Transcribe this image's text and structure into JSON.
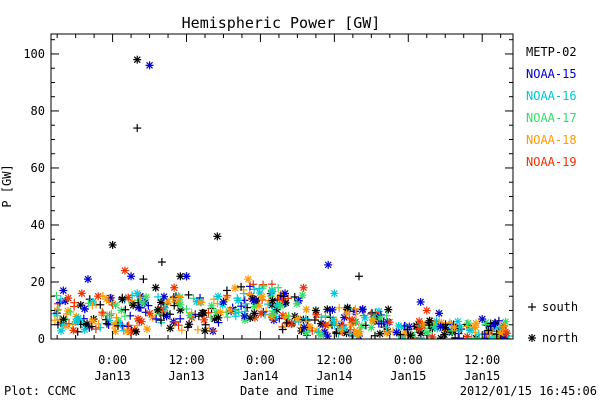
{
  "chart_data": {
    "type": "scatter",
    "title": "Hemispheric Power [GW]",
    "ylabel": "P [GW]",
    "xlabel": "Date and Time",
    "ylim": [
      0,
      107
    ],
    "yticks": [
      0,
      20,
      40,
      60,
      80,
      100
    ],
    "xlim": [
      "2012-01-12T14:00",
      "2012-01-15T17:00"
    ],
    "xticks": [
      {
        "time": "2012-01-13T00:00",
        "label1": "0:00",
        "label2": "Jan13"
      },
      {
        "time": "2012-01-13T12:00",
        "label1": "12:00",
        "label2": "Jan13"
      },
      {
        "time": "2012-01-14T00:00",
        "label1": "0:00",
        "label2": "Jan14"
      },
      {
        "time": "2012-01-14T12:00",
        "label1": "12:00",
        "label2": "Jan14"
      },
      {
        "time": "2012-01-15T00:00",
        "label1": "0:00",
        "label2": "Jan15"
      },
      {
        "time": "2012-01-15T12:00",
        "label1": "12:00",
        "label2": "Jan15"
      }
    ],
    "grid": false,
    "legend_position": "right",
    "marker_legend": [
      {
        "symbol": "+",
        "label": "south"
      },
      {
        "symbol": "*",
        "label": "north"
      }
    ],
    "series": [
      {
        "name": "METP-02",
        "color": "#000000",
        "points": [
          {
            "t": "2012-01-13T04:00",
            "v": 98,
            "h": "north"
          },
          {
            "t": "2012-01-13T04:00",
            "v": 74,
            "h": "south"
          },
          {
            "t": "2012-01-13T00:00",
            "v": 33,
            "h": "north"
          },
          {
            "t": "2012-01-13T17:00",
            "v": 36,
            "h": "north"
          },
          {
            "t": "2012-01-13T07:00",
            "v": 18,
            "h": "north"
          },
          {
            "t": "2012-01-13T08:00",
            "v": 27,
            "h": "south"
          },
          {
            "t": "2012-01-13T11:00",
            "v": 22,
            "h": "north"
          },
          {
            "t": "2012-01-13T12:00",
            "v": 22,
            "h": "south"
          },
          {
            "t": "2012-01-12T22:00",
            "v": 12,
            "h": "south"
          },
          {
            "t": "2012-01-13T05:00",
            "v": 21,
            "h": "south"
          },
          {
            "t": "2012-01-13T14:00",
            "v": 8,
            "h": "south"
          },
          {
            "t": "2012-01-13T23:00",
            "v": 9,
            "h": "north"
          },
          {
            "t": "2012-01-14T09:00",
            "v": 10,
            "h": "north"
          },
          {
            "t": "2012-01-14T16:00",
            "v": 22,
            "h": "south"
          },
          {
            "t": "2012-01-15T06:00",
            "v": 4,
            "h": "north"
          },
          {
            "t": "2012-01-15T13:00",
            "v": 3,
            "h": "south"
          }
        ]
      },
      {
        "name": "NOAA-15",
        "color": "#0000cc",
        "points": [
          {
            "t": "2012-01-13T06:00",
            "v": 96,
            "h": "north"
          },
          {
            "t": "2012-01-12T16:00",
            "v": 17,
            "h": "north"
          },
          {
            "t": "2012-01-12T20:00",
            "v": 21,
            "h": "north"
          },
          {
            "t": "2012-01-13T03:00",
            "v": 22,
            "h": "north"
          },
          {
            "t": "2012-01-13T12:00",
            "v": 22,
            "h": "north"
          },
          {
            "t": "2012-01-13T18:00",
            "v": 13,
            "h": "north"
          },
          {
            "t": "2012-01-14T04:00",
            "v": 16,
            "h": "north"
          },
          {
            "t": "2012-01-14T11:00",
            "v": 26,
            "h": "north"
          },
          {
            "t": "2012-01-14T20:00",
            "v": 6,
            "h": "south"
          },
          {
            "t": "2012-01-15T02:00",
            "v": 13,
            "h": "north"
          },
          {
            "t": "2012-01-15T05:00",
            "v": 9,
            "h": "north"
          },
          {
            "t": "2012-01-15T12:00",
            "v": 7,
            "h": "north"
          },
          {
            "t": "2012-01-15T14:00",
            "v": 5,
            "h": "south"
          }
        ]
      },
      {
        "name": "NOAA-16",
        "color": "#00c8d8",
        "points": [
          {
            "t": "2012-01-13T04:00",
            "v": 16,
            "h": "north"
          },
          {
            "t": "2012-01-14T12:00",
            "v": 16,
            "h": "north"
          },
          {
            "t": "2012-01-13T20:00",
            "v": 8,
            "h": "south"
          },
          {
            "t": "2012-01-12T18:00",
            "v": 6,
            "h": "north"
          },
          {
            "t": "2012-01-15T10:00",
            "v": 3,
            "h": "north"
          },
          {
            "t": "2012-01-12T22:00",
            "v": 4,
            "h": "south"
          }
        ]
      },
      {
        "name": "NOAA-17",
        "color": "#33dd66",
        "points": [
          {
            "t": "2012-01-13T11:00",
            "v": 12,
            "h": "north"
          },
          {
            "t": "2012-01-14T18:00",
            "v": 4,
            "h": "north"
          },
          {
            "t": "2012-01-13T02:00",
            "v": 8,
            "h": "south"
          },
          {
            "t": "2012-01-14T02:00",
            "v": 9,
            "h": "north"
          }
        ]
      },
      {
        "name": "NOAA-18",
        "color": "#ff9900",
        "points": [
          {
            "t": "2012-01-13T22:00",
            "v": 21,
            "h": "north"
          },
          {
            "t": "2012-01-12T23:00",
            "v": 14,
            "h": "north"
          },
          {
            "t": "2012-01-13T09:00",
            "v": 13,
            "h": "north"
          },
          {
            "t": "2012-01-14T14:00",
            "v": 9,
            "h": "north"
          },
          {
            "t": "2012-01-15T15:00",
            "v": 2,
            "h": "north"
          }
        ]
      },
      {
        "name": "NOAA-19",
        "color": "#ee3300",
        "points": [
          {
            "t": "2012-01-13T02:00",
            "v": 24,
            "h": "north"
          },
          {
            "t": "2012-01-13T10:00",
            "v": 18,
            "h": "north"
          },
          {
            "t": "2012-01-14T07:00",
            "v": 18,
            "h": "north"
          },
          {
            "t": "2012-01-12T19:00",
            "v": 16,
            "h": "north"
          },
          {
            "t": "2012-01-15T03:00",
            "v": 10,
            "h": "north"
          },
          {
            "t": "2012-01-15T16:00",
            "v": 2,
            "h": "north"
          }
        ]
      }
    ]
  },
  "footer": {
    "plot_credit": "Plot: CCMC",
    "x_axis_title": "Date and Time",
    "timestamp": "2012/01/15 16:45:06"
  }
}
